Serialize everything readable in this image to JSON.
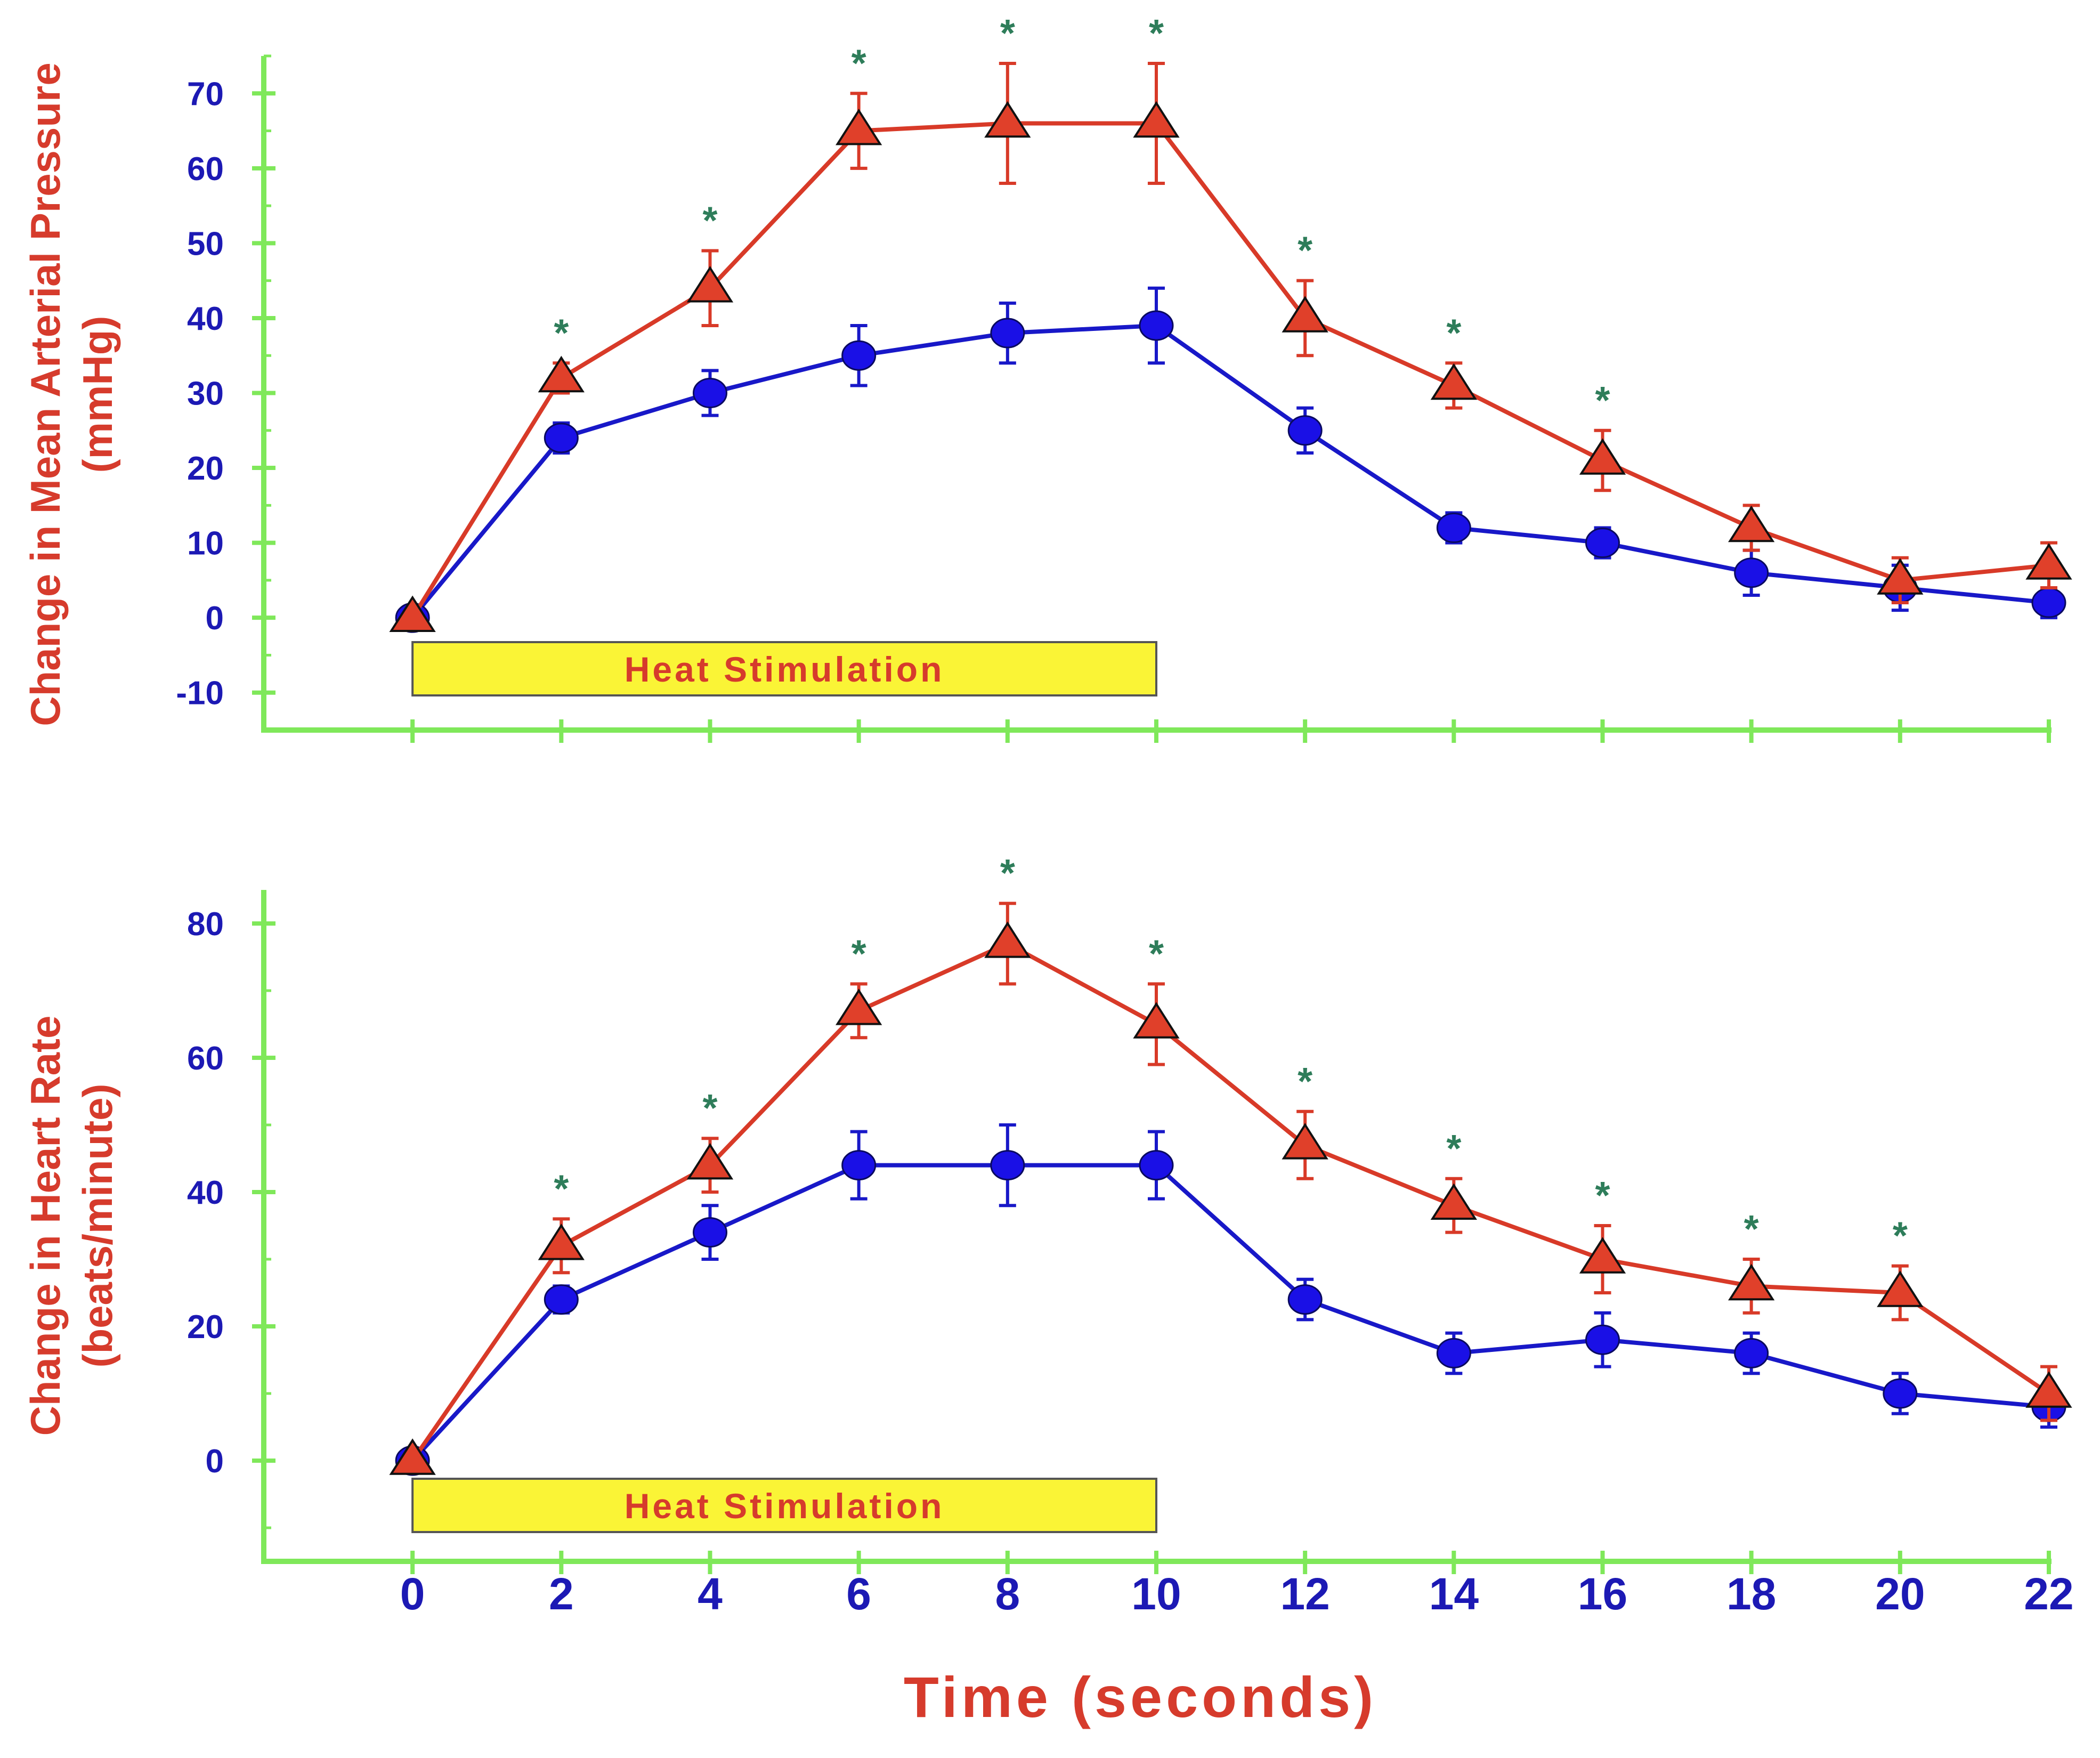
{
  "colors": {
    "axis": "#7FE85A",
    "tick_label": "#1C19B4",
    "axis_title": "#D63B2C",
    "series_a": "#1818C8",
    "series_a_fill": "#1A10E6",
    "series_b": "#D83A28",
    "series_b_fill": "#E0402A",
    "star": "#2E7D5A",
    "stim_bar": "#FAF436",
    "stim_border": "#555555",
    "stim_text": "#D63B2C"
  },
  "shared_xlabel": "Time (seconds)",
  "chart_data": [
    {
      "type": "line",
      "title": "",
      "ylabel_line1": "Change in Mean Arterial Pressure",
      "ylabel_line2": "(mmHg)",
      "x": [
        0,
        2,
        4,
        6,
        8,
        10,
        12,
        14,
        16,
        18,
        20,
        22
      ],
      "xlim": [
        -2,
        22
      ],
      "ylim": [
        -15,
        75
      ],
      "yticks": [
        -10,
        0,
        10,
        20,
        30,
        40,
        50,
        60,
        70
      ],
      "yminor": 5,
      "series": [
        {
          "name": "circle series",
          "marker": "circle",
          "values": [
            0,
            24,
            30,
            35,
            38,
            39,
            25,
            12,
            10,
            6,
            4,
            2
          ],
          "errors": [
            0,
            2,
            3,
            4,
            4,
            5,
            3,
            2,
            2,
            3,
            3,
            2
          ]
        },
        {
          "name": "triangle series",
          "marker": "triangle",
          "values": [
            0,
            32,
            44,
            65,
            66,
            66,
            40,
            31,
            21,
            12,
            5,
            7
          ],
          "errors": [
            0,
            2,
            5,
            5,
            8,
            8,
            5,
            3,
            4,
            3,
            3,
            3
          ]
        }
      ],
      "significance_marker": "*",
      "significant_x": [
        2,
        4,
        6,
        8,
        10,
        12,
        14,
        16
      ],
      "stimulus": {
        "label": "Heat Stimulation",
        "x_start": 0,
        "x_end": 10
      }
    },
    {
      "type": "line",
      "title": "",
      "ylabel_line1": "Change in Heart Rate",
      "ylabel_line2": "(beats/minute)",
      "x": [
        0,
        2,
        4,
        6,
        8,
        10,
        12,
        14,
        16,
        18,
        20,
        22
      ],
      "xlim": [
        -2,
        22
      ],
      "ylim": [
        -15,
        85
      ],
      "yticks": [
        0,
        20,
        40,
        60,
        80
      ],
      "yminor": 10,
      "xticks": [
        0,
        2,
        4,
        6,
        8,
        10,
        12,
        14,
        16,
        18,
        20,
        22
      ],
      "series": [
        {
          "name": "circle series",
          "marker": "circle",
          "values": [
            0,
            24,
            34,
            44,
            44,
            44,
            24,
            16,
            18,
            16,
            10,
            8
          ],
          "errors": [
            0,
            2,
            4,
            5,
            6,
            5,
            3,
            3,
            4,
            3,
            3,
            3
          ]
        },
        {
          "name": "triangle series",
          "marker": "triangle",
          "values": [
            0,
            32,
            44,
            67,
            77,
            65,
            47,
            38,
            30,
            26,
            25,
            10
          ],
          "errors": [
            0,
            4,
            4,
            4,
            6,
            6,
            5,
            4,
            5,
            4,
            4,
            4
          ]
        }
      ],
      "significance_marker": "*",
      "significant_x": [
        2,
        4,
        6,
        8,
        10,
        12,
        14,
        16,
        18,
        20
      ],
      "stimulus": {
        "label": "Heat Stimulation",
        "x_start": 0,
        "x_end": 10
      }
    }
  ]
}
